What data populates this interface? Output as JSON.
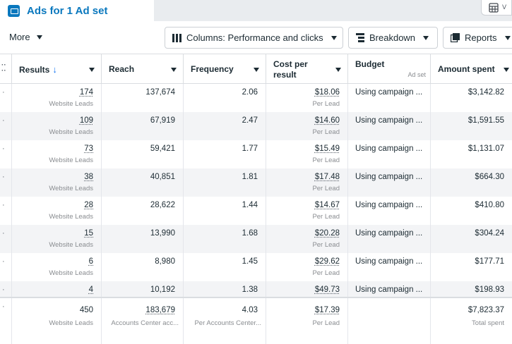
{
  "tab": {
    "title": "Ads for 1 Ad set"
  },
  "toolbar": {
    "more_label": "More",
    "columns_label": "Columns: Performance and clicks",
    "breakdown_label": "Breakdown",
    "reports_label": "Reports"
  },
  "columns": {
    "results": "Results",
    "reach": "Reach",
    "frequency": "Frequency",
    "cost_per_result": "Cost per result",
    "budget": "Budget",
    "budget_sub": "Ad set",
    "amount_spent": "Amount spent"
  },
  "rows": [
    {
      "results": "174",
      "results_type": "Website Leads",
      "reach": "137,674",
      "frequency": "2.06",
      "cost": "$18.06",
      "cost_sub": "Per Lead",
      "budget": "Using campaign ...",
      "spent": "$3,142.82"
    },
    {
      "results": "109",
      "results_type": "Website Leads",
      "reach": "67,919",
      "frequency": "2.47",
      "cost": "$14.60",
      "cost_sub": "Per Lead",
      "budget": "Using campaign ...",
      "spent": "$1,591.55"
    },
    {
      "results": "73",
      "results_type": "Website Leads",
      "reach": "59,421",
      "frequency": "1.77",
      "cost": "$15.49",
      "cost_sub": "Per Lead",
      "budget": "Using campaign ...",
      "spent": "$1,131.07"
    },
    {
      "results": "38",
      "results_type": "Website Leads",
      "reach": "40,851",
      "frequency": "1.81",
      "cost": "$17.48",
      "cost_sub": "Per Lead",
      "budget": "Using campaign ...",
      "spent": "$664.30"
    },
    {
      "results": "28",
      "results_type": "Website Leads",
      "reach": "28,622",
      "frequency": "1.44",
      "cost": "$14.67",
      "cost_sub": "Per Lead",
      "budget": "Using campaign ...",
      "spent": "$410.80"
    },
    {
      "results": "15",
      "results_type": "Website Leads",
      "reach": "13,990",
      "frequency": "1.68",
      "cost": "$20.28",
      "cost_sub": "Per Lead",
      "budget": "Using campaign ...",
      "spent": "$304.24"
    },
    {
      "results": "6",
      "results_type": "Website Leads",
      "reach": "8,980",
      "frequency": "1.45",
      "cost": "$29.62",
      "cost_sub": "Per Lead",
      "budget": "Using campaign ...",
      "spent": "$177.71"
    },
    {
      "results": "4",
      "results_type": "",
      "reach": "10,192",
      "frequency": "1.38",
      "cost": "$49.73",
      "cost_sub": "",
      "budget": "Using campaign ...",
      "spent": "$198.93"
    }
  ],
  "totals": {
    "results": "450",
    "results_sub": "Website Leads",
    "reach": "183,679",
    "reach_sub": "Accounts Center acc...",
    "frequency": "4.03",
    "frequency_sub": "Per Accounts Center...",
    "cost": "$17.39",
    "cost_sub": "Per Lead",
    "spent": "$7,823.37",
    "spent_sub": "Total spent"
  },
  "colors": {
    "accent": "#0a78be",
    "sort": "#1877f2",
    "row_alt": "#f3f4f6",
    "border": "#dadde1"
  }
}
